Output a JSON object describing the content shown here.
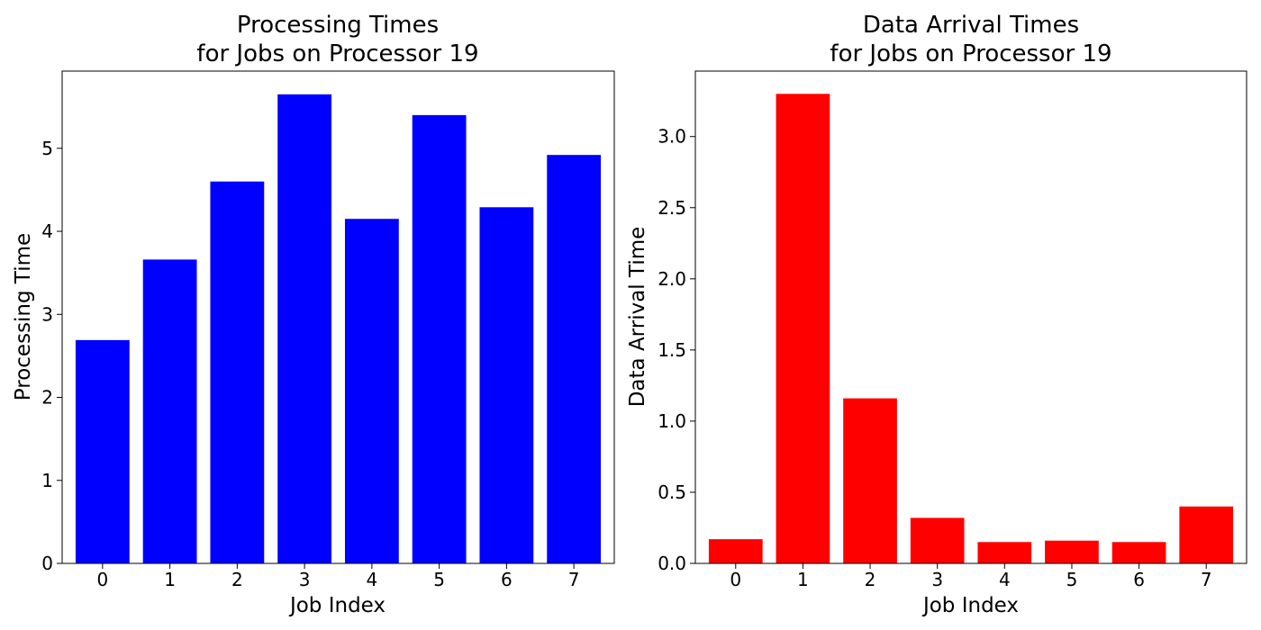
{
  "chart_data": [
    {
      "type": "bar",
      "title_line1": "Processing Times",
      "title_line2": "for Jobs on Processor 19",
      "xlabel": "Job Index",
      "ylabel": "Processing Time",
      "categories": [
        "0",
        "1",
        "2",
        "3",
        "4",
        "5",
        "6",
        "7"
      ],
      "values": [
        2.69,
        3.66,
        4.6,
        5.65,
        4.15,
        5.4,
        4.29,
        4.92
      ],
      "color": "#0000ff",
      "ylim": [
        0,
        5.93
      ],
      "yticks": [
        0,
        1,
        2,
        3,
        4,
        5
      ],
      "ytick_labels": [
        "0",
        "1",
        "2",
        "3",
        "4",
        "5"
      ],
      "grid": false,
      "legend": "none"
    },
    {
      "type": "bar",
      "title_line1": "Data Arrival Times",
      "title_line2": "for Jobs on Processor 19",
      "xlabel": "Job Index",
      "ylabel": "Data Arrival Time",
      "categories": [
        "0",
        "1",
        "2",
        "3",
        "4",
        "5",
        "6",
        "7"
      ],
      "values": [
        0.17,
        3.3,
        1.16,
        0.32,
        0.15,
        0.16,
        0.15,
        0.4
      ],
      "color": "#ff0000",
      "ylim": [
        0,
        3.46
      ],
      "yticks": [
        0,
        0.5,
        1,
        1.5,
        2,
        2.5,
        3
      ],
      "ytick_labels": [
        "0.0",
        "0.5",
        "1.0",
        "1.5",
        "2.0",
        "2.5",
        "3.0"
      ],
      "grid": false,
      "legend": "none"
    }
  ]
}
